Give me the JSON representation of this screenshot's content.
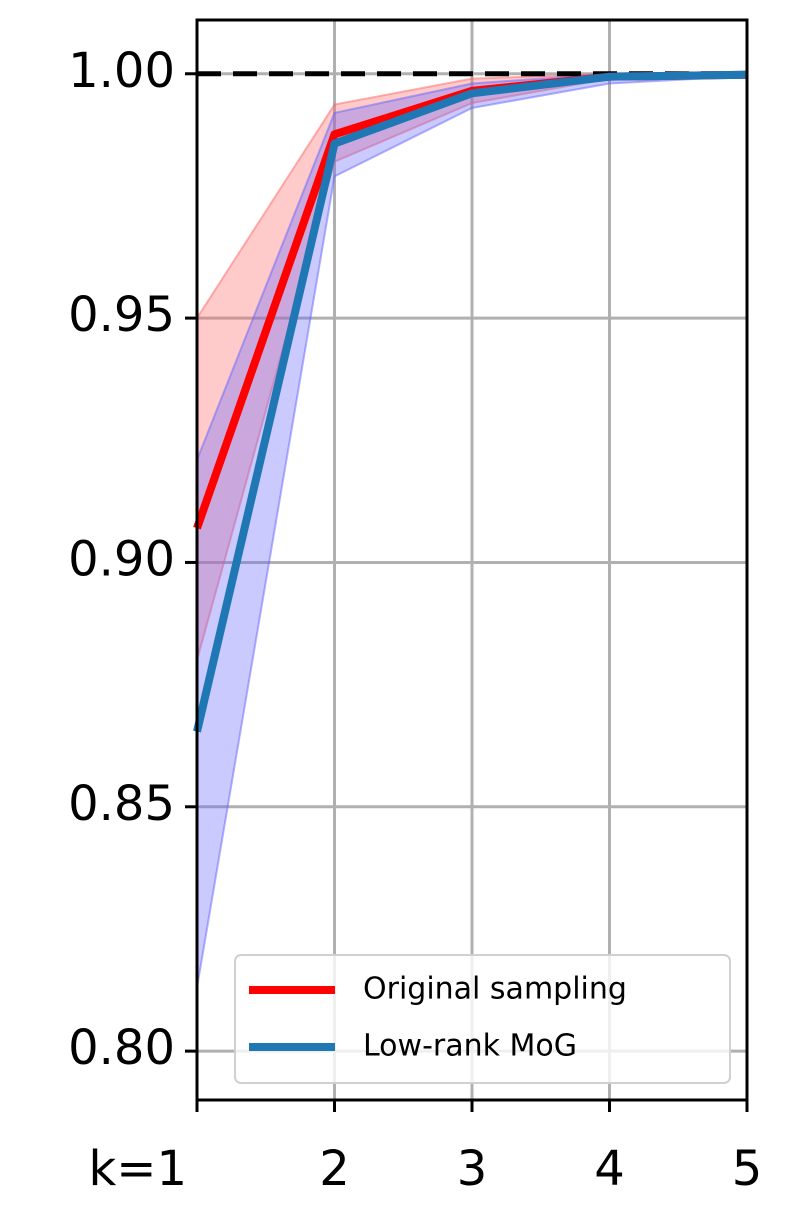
{
  "chart_data": {
    "type": "line",
    "x": [
      1,
      2,
      3,
      4,
      5
    ],
    "series": [
      {
        "name": "Original sampling",
        "color": "#ff0000",
        "band_color": "#ff6666",
        "values": [
          0.907,
          0.9876,
          0.9965,
          0.9994,
          0.9998
        ],
        "lower": [
          0.88,
          0.982,
          0.994,
          0.999,
          0.9995
        ],
        "upper": [
          0.95,
          0.9937,
          0.999,
          1.0,
          1.0
        ]
      },
      {
        "name": "Low-rank MoG",
        "color": "#1f77b4",
        "band_color": "#6666ff",
        "values": [
          0.8654,
          0.9857,
          0.996,
          0.9994,
          0.9998
        ],
        "lower": [
          0.813,
          0.979,
          0.993,
          0.998,
          0.9995
        ],
        "upper": [
          0.921,
          0.992,
          0.998,
          1.0,
          1.0
        ]
      }
    ],
    "hline": 1.0,
    "xlim": [
      1,
      5
    ],
    "xticks": [
      {
        "value": 1,
        "label": "k=1"
      },
      2,
      3,
      4,
      5
    ],
    "ylim": [
      0.79,
      1.011
    ],
    "yticks": [
      {
        "value": 0.8,
        "label": "0.80"
      },
      {
        "value": 0.85,
        "label": "0.85"
      },
      {
        "value": 0.9,
        "label": "0.90"
      },
      {
        "value": 0.95,
        "label": "0.95"
      },
      {
        "value": 1.0,
        "label": "1.00"
      }
    ],
    "grid": true,
    "legend": "lower right"
  }
}
